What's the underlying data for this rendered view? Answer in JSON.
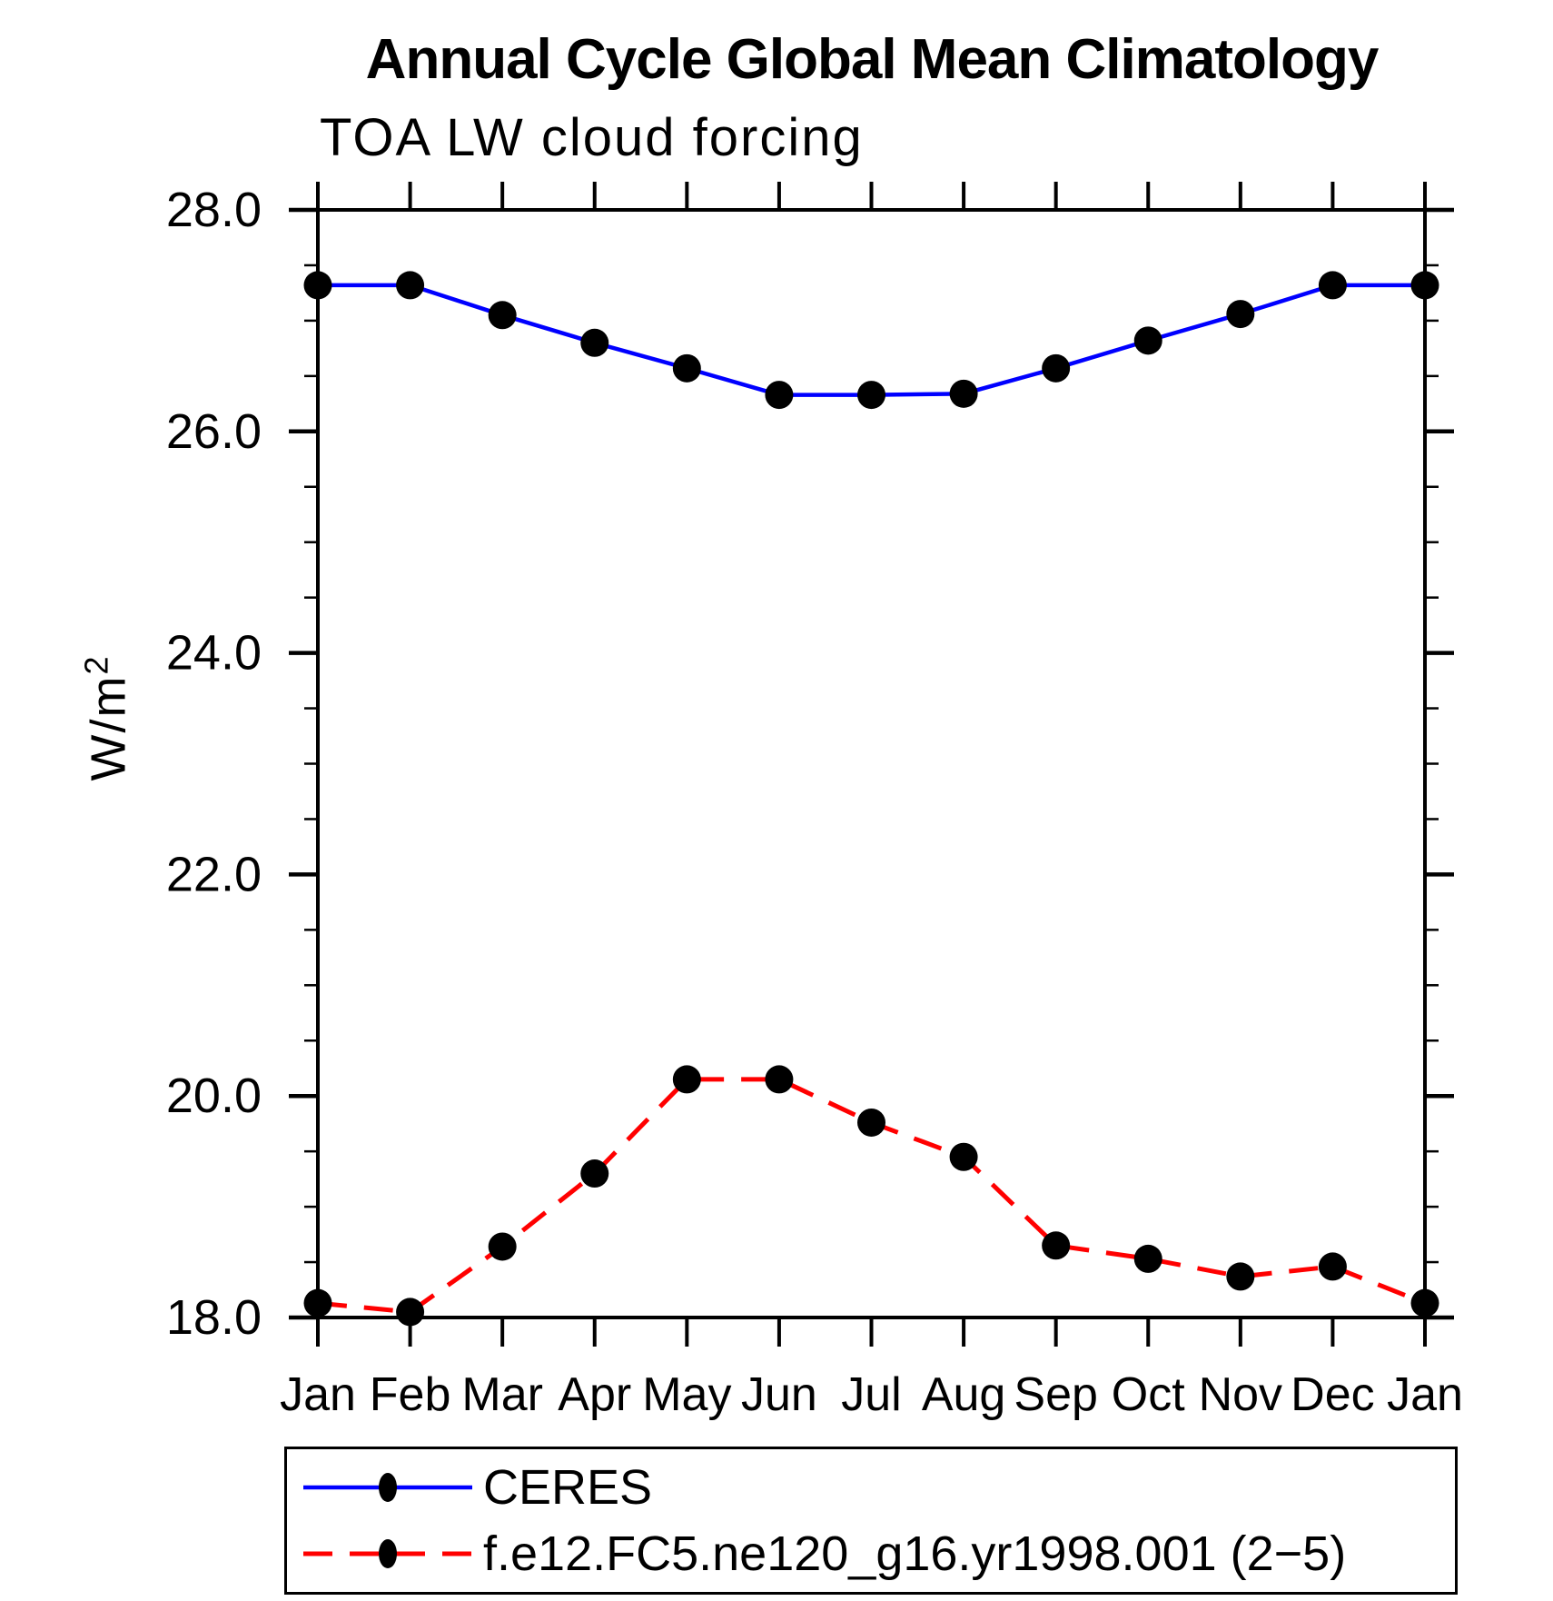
{
  "title": "Annual Cycle Global Mean Climatology",
  "subtitle": "TOA LW cloud forcing",
  "ylabel": {
    "base": "W/m",
    "exp": "2"
  },
  "chart_data": {
    "type": "line",
    "title": "Annual Cycle Global Mean Climatology",
    "subtitle": "TOA LW cloud forcing",
    "xlabel": "",
    "ylabel": "W/m^2",
    "categories": [
      "Jan",
      "Feb",
      "Mar",
      "Apr",
      "May",
      "Jun",
      "Jul",
      "Aug",
      "Sep",
      "Oct",
      "Nov",
      "Dec",
      "Jan"
    ],
    "series": [
      {
        "name": "CERES",
        "color": "#0000ff",
        "line_style": "solid",
        "marker": "filled-circle",
        "marker_color": "#000000",
        "values": [
          27.32,
          27.32,
          27.05,
          26.8,
          26.57,
          26.33,
          26.33,
          26.34,
          26.57,
          26.82,
          27.06,
          27.32,
          27.32
        ]
      },
      {
        "name": "f.e12.FC5.ne120_g16.yr1998.001 (2−5)",
        "color": "#ff0000",
        "line_style": "dashed",
        "marker": "filled-circle",
        "marker_color": "#000000",
        "values": [
          18.13,
          18.05,
          18.64,
          19.3,
          20.15,
          20.15,
          19.76,
          19.45,
          18.65,
          18.53,
          18.37,
          18.46,
          18.13
        ]
      }
    ],
    "ylim": [
      18.0,
      28.0
    ],
    "ytick_major": [
      18.0,
      20.0,
      22.0,
      24.0,
      26.0,
      28.0
    ],
    "ytick_labels": [
      "18.0",
      "20.0",
      "22.0",
      "24.0",
      "26.0",
      "28.0"
    ],
    "ytick_minor_step": 0.5,
    "grid": false,
    "tick_direction": "out",
    "legend_position": "bottom"
  }
}
